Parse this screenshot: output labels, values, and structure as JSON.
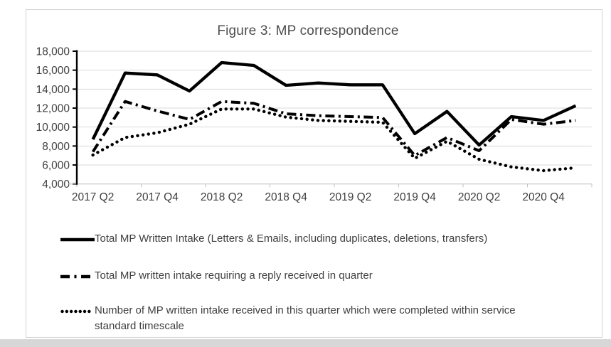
{
  "figure": {
    "frame_border_color": "#d2d2d2",
    "window_edge_color": "#d7d7d7"
  },
  "chart_data": {
    "type": "line",
    "title": "Figure 3: MP correspondence",
    "xlabel": "",
    "ylabel": "",
    "ylim": [
      4000,
      18000
    ],
    "y_tick_step": 2000,
    "grid": true,
    "legend_position": "bottom-left",
    "categories": [
      "2017 Q2",
      "2017 Q3",
      "2017 Q4",
      "2018 Q1",
      "2018 Q2",
      "2018 Q3",
      "2018 Q4",
      "2019 Q1",
      "2019 Q2",
      "2019 Q3",
      "2019 Q4",
      "2020 Q1",
      "2020 Q2",
      "2020 Q3",
      "2020 Q4",
      "2021 Q1"
    ],
    "x_tick_labels": [
      "2017 Q2",
      "2017 Q4",
      "2018 Q2",
      "2018 Q4",
      "2019 Q2",
      "2019 Q4",
      "2020 Q2",
      "2020 Q4"
    ],
    "y_ticks": [
      {
        "value": 18000,
        "label": "18,000"
      },
      {
        "value": 16000,
        "label": "16,000"
      },
      {
        "value": 14000,
        "label": "14,000"
      },
      {
        "value": 12000,
        "label": "12,000"
      },
      {
        "value": 10000,
        "label": "10,000"
      },
      {
        "value": 8000,
        "label": "8,000"
      },
      {
        "value": 6000,
        "label": "6,000"
      },
      {
        "value": 4000,
        "label": "4,000"
      }
    ],
    "series": [
      {
        "name": "Total MP Written Intake (Letters & Emails, including duplicates, deletions, transfers)",
        "style": "solid",
        "color": "#000000",
        "values": [
          8700,
          15700,
          15500,
          13800,
          16800,
          16500,
          14400,
          14650,
          14450,
          14450,
          9300,
          11650,
          8100,
          11100,
          10700,
          12250
        ]
      },
      {
        "name": "Total MP written intake requiring a reply received in quarter",
        "style": "dash-dot",
        "color": "#000000",
        "values": [
          7400,
          12700,
          11700,
          10800,
          12700,
          12500,
          11400,
          11200,
          11100,
          11000,
          7000,
          8900,
          7500,
          10800,
          10300,
          10700
        ]
      },
      {
        "name": "Number of MP written intake received in this quarter which were completed within service standard timescale",
        "style": "dotted",
        "color": "#000000",
        "values": [
          7050,
          8900,
          9400,
          10300,
          11900,
          11900,
          11050,
          10700,
          10600,
          10500,
          6700,
          8500,
          6600,
          5800,
          5400,
          5700
        ]
      }
    ],
    "axis_colors": {
      "y_axis": "#000000",
      "x_axis": "#bfbfbf",
      "gridline": "#d9d9d9",
      "tick_label": "#404040"
    }
  }
}
